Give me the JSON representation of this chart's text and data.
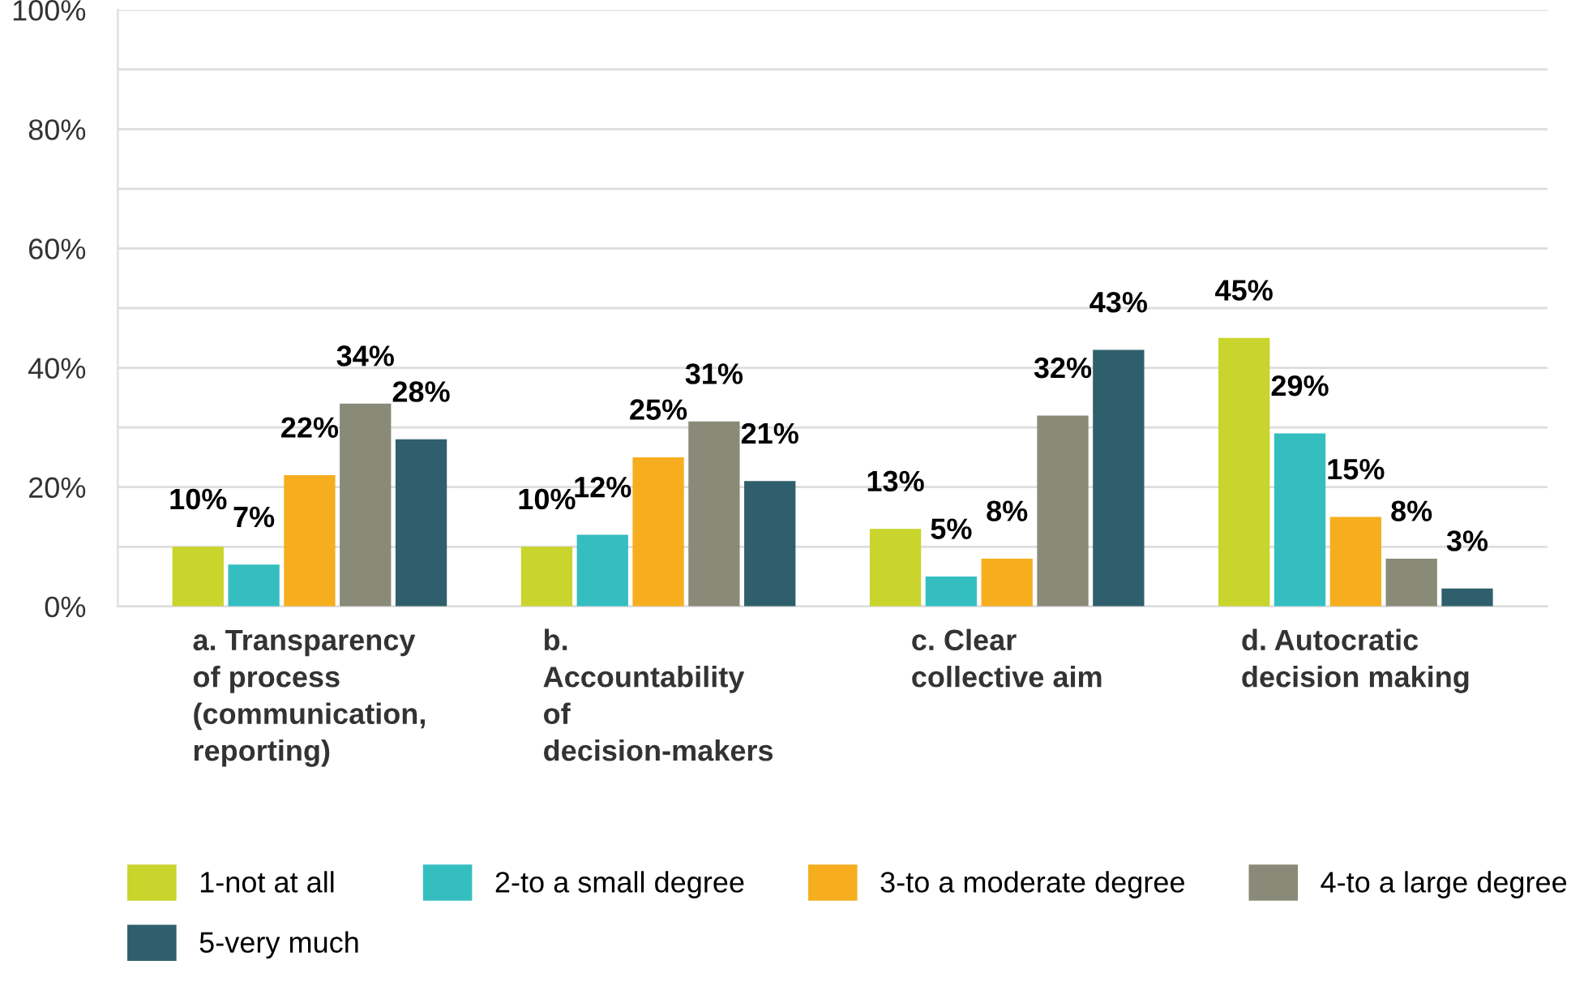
{
  "chart_data": {
    "type": "bar",
    "categories": [
      "a. Transparency\nof process\n(communication,\nreporting)",
      "b.\nAccountability\nof\ndecision-makers",
      "c. Clear\ncollective aim",
      "d. Autocratic\ndecision making"
    ],
    "series": [
      {
        "name": "1-not at all",
        "color": "#c9d42c",
        "values": [
          10,
          10,
          13,
          45
        ],
        "value_labels": [
          "10%",
          "10%",
          "13%",
          "45%"
        ]
      },
      {
        "name": "2-to a small degree",
        "color": "#35bec0",
        "values": [
          7,
          12,
          5,
          29
        ],
        "value_labels": [
          "7%",
          "12%",
          "5%",
          "29%"
        ]
      },
      {
        "name": "3-to a moderate degree",
        "color": "#f6ae1f",
        "values": [
          22,
          25,
          8,
          15
        ],
        "value_labels": [
          "22%",
          "25%",
          "8%",
          "15%"
        ]
      },
      {
        "name": "4-to a large degree",
        "color": "#8a8a78",
        "values": [
          34,
          31,
          32,
          8
        ],
        "value_labels": [
          "34%",
          "31%",
          "32%",
          "8%"
        ]
      },
      {
        "name": "5-very much",
        "color": "#2f5f6c",
        "values": [
          28,
          21,
          43,
          3
        ],
        "value_labels": [
          "28%",
          "21%",
          "43%",
          "3%"
        ]
      }
    ],
    "ylim": [
      0,
      100
    ],
    "yticks": [
      {
        "value": 0,
        "label": "0%"
      },
      {
        "value": 10,
        "label": null
      },
      {
        "value": 20,
        "label": "20%"
      },
      {
        "value": 30,
        "label": null
      },
      {
        "value": 40,
        "label": "40%"
      },
      {
        "value": 50,
        "label": null
      },
      {
        "value": 60,
        "label": "60%"
      },
      {
        "value": 70,
        "label": null
      },
      {
        "value": 80,
        "label": "80%"
      },
      {
        "value": 90,
        "label": null
      },
      {
        "value": 100,
        "label": "100%"
      }
    ],
    "grid": "y",
    "legend": "bottom"
  }
}
